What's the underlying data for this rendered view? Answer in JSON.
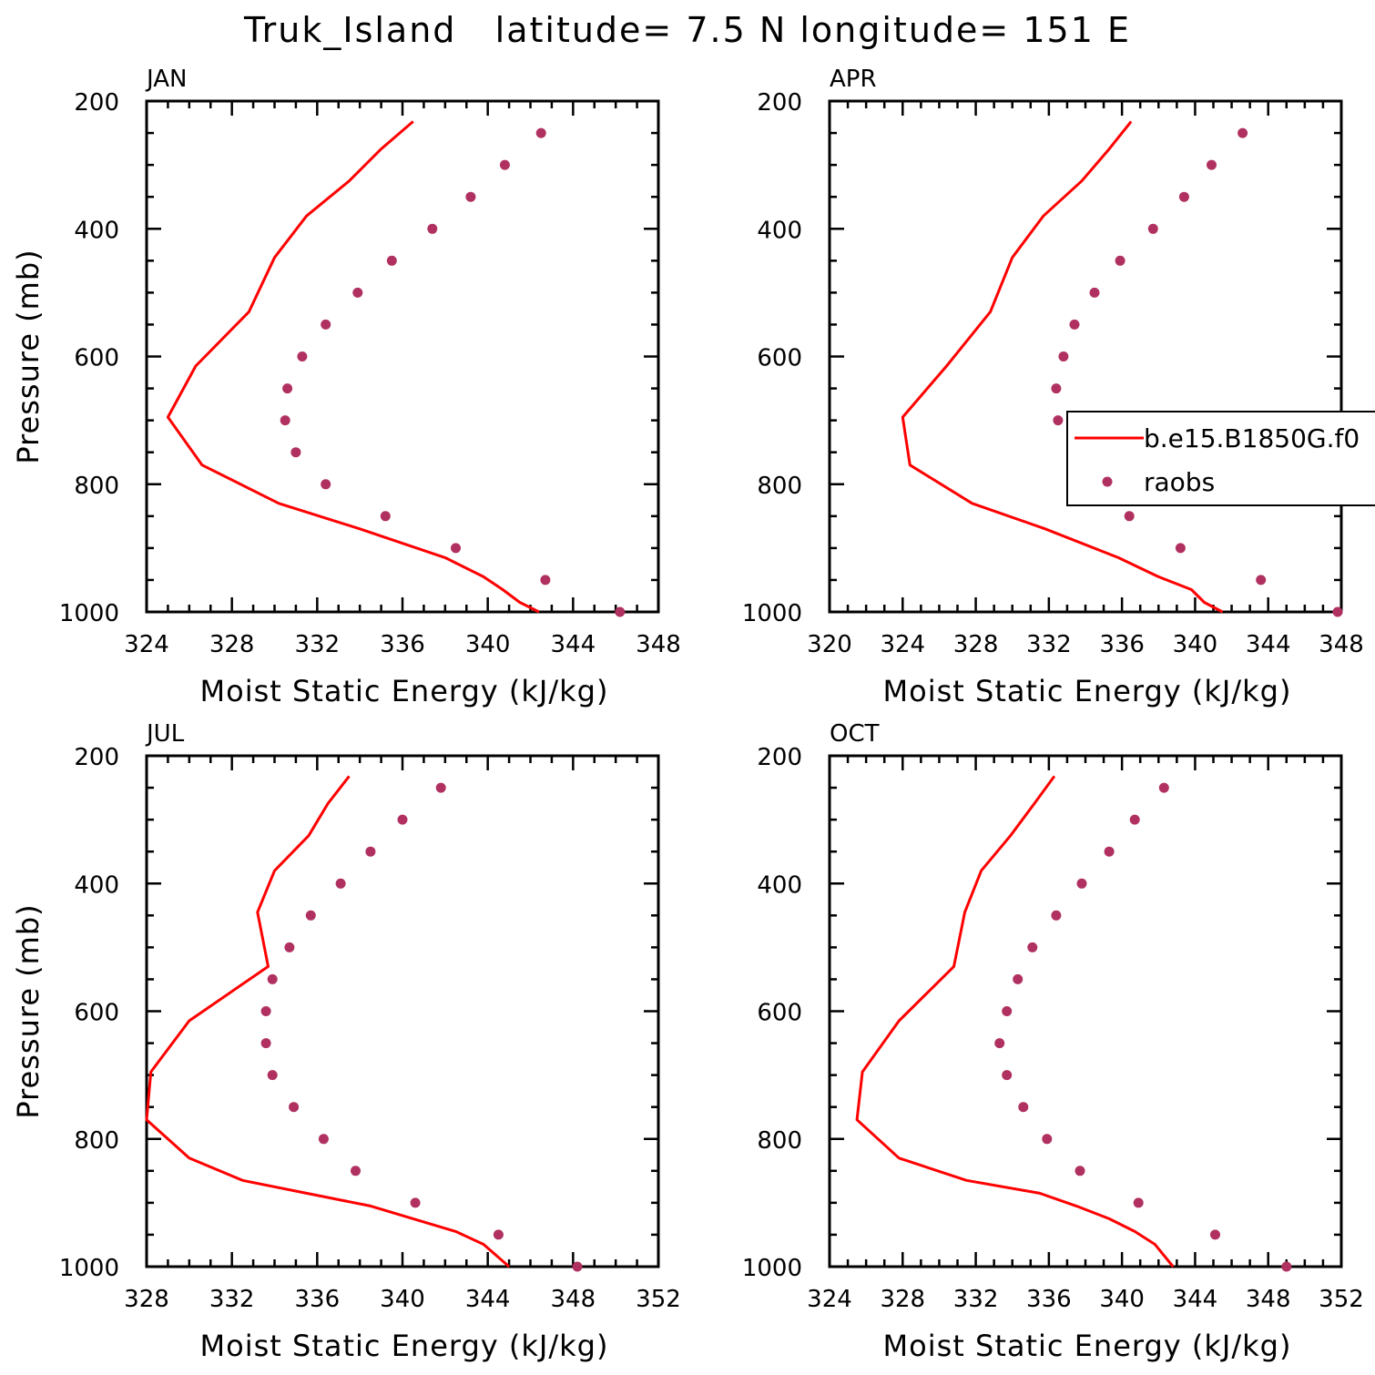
{
  "figure": {
    "title": "Truk_Island   latitude= 7.5 N longitude= 151 E"
  },
  "chart_data": [
    {
      "type": "line",
      "panel": "JAN",
      "xlabel": "Moist Static Energy (kJ/kg)",
      "ylabel": "Pressure (mb)",
      "xlim": [
        324,
        348
      ],
      "xticks": [
        324,
        328,
        332,
        336,
        340,
        344,
        348
      ],
      "ylim": [
        200,
        1000
      ],
      "yticks": [
        200,
        400,
        600,
        800,
        1000
      ],
      "y_inverted": true,
      "legend": null,
      "series": [
        {
          "name": "b.e15.B1850G.f0",
          "kind": "line",
          "color": "#ff0000",
          "x": [
            336.5,
            335.0,
            333.5,
            331.5,
            330.0,
            328.8,
            326.3,
            325.0,
            326.6,
            330.2,
            334.0,
            338.0,
            339.8,
            340.7,
            341.5,
            342.4
          ],
          "y": [
            232,
            275,
            325,
            380,
            445,
            530,
            615,
            695,
            770,
            830,
            870,
            915,
            945,
            965,
            985,
            1000
          ]
        },
        {
          "name": "raobs",
          "kind": "scatter",
          "color": "#b03060",
          "x": [
            342.5,
            340.8,
            339.2,
            337.4,
            335.5,
            333.9,
            332.4,
            331.3,
            330.6,
            330.5,
            331.0,
            332.4,
            335.2,
            338.5,
            342.7,
            346.2
          ],
          "y": [
            250,
            300,
            350,
            400,
            450,
            500,
            550,
            600,
            650,
            700,
            750,
            800,
            850,
            900,
            950,
            1000
          ]
        }
      ]
    },
    {
      "type": "line",
      "panel": "APR",
      "xlabel": "Moist Static Energy (kJ/kg)",
      "ylabel": "",
      "xlim": [
        320,
        348
      ],
      "xticks": [
        320,
        324,
        328,
        332,
        336,
        340,
        344,
        348
      ],
      "ylim": [
        200,
        1000
      ],
      "yticks": [
        200,
        400,
        600,
        800,
        1000
      ],
      "y_inverted": true,
      "legend": {
        "position": "right",
        "entries": [
          "b.e15.B1850G.f0",
          "raobs"
        ]
      },
      "series": [
        {
          "name": "b.e15.B1850G.f0",
          "kind": "line",
          "color": "#ff0000",
          "x": [
            336.5,
            335.3,
            333.8,
            331.7,
            330.0,
            328.8,
            326.4,
            324.0,
            324.4,
            327.8,
            331.8,
            335.8,
            338.0,
            339.8,
            340.5,
            341.5
          ],
          "y": [
            232,
            275,
            325,
            380,
            445,
            530,
            615,
            695,
            770,
            830,
            870,
            915,
            945,
            965,
            985,
            1000
          ]
        },
        {
          "name": "raobs",
          "kind": "scatter",
          "color": "#b03060",
          "x": [
            342.6,
            340.9,
            339.4,
            337.7,
            335.9,
            334.5,
            333.4,
            332.8,
            332.4,
            332.5,
            333.4,
            334.6,
            336.4,
            339.2,
            343.6,
            347.8
          ],
          "y": [
            250,
            300,
            350,
            400,
            450,
            500,
            550,
            600,
            650,
            700,
            750,
            800,
            850,
            900,
            950,
            1000
          ]
        }
      ]
    },
    {
      "type": "line",
      "panel": "JUL",
      "xlabel": "Moist Static Energy (kJ/kg)",
      "ylabel": "Pressure (mb)",
      "xlim": [
        328,
        352
      ],
      "xticks": [
        328,
        332,
        336,
        340,
        344,
        348,
        352
      ],
      "ylim": [
        200,
        1000
      ],
      "yticks": [
        200,
        400,
        600,
        800,
        1000
      ],
      "y_inverted": true,
      "legend": null,
      "series": [
        {
          "name": "b.e15.B1850G.f0",
          "kind": "line",
          "color": "#ff0000",
          "x": [
            337.5,
            336.5,
            335.6,
            334.0,
            333.2,
            333.7,
            330.0,
            328.2,
            328.0,
            330.0,
            332.5,
            335.5,
            338.5,
            340.5,
            342.5,
            343.8,
            345.0
          ],
          "y": [
            232,
            275,
            325,
            380,
            445,
            530,
            615,
            695,
            770,
            830,
            865,
            885,
            905,
            925,
            945,
            965,
            1000
          ]
        },
        {
          "name": "raobs",
          "kind": "scatter",
          "color": "#b03060",
          "x": [
            341.8,
            340.0,
            338.5,
            337.1,
            335.7,
            334.7,
            333.9,
            333.6,
            333.6,
            333.9,
            334.9,
            336.3,
            337.8,
            340.6,
            344.5,
            348.2
          ],
          "y": [
            250,
            300,
            350,
            400,
            450,
            500,
            550,
            600,
            650,
            700,
            750,
            800,
            850,
            900,
            950,
            1000
          ]
        }
      ]
    },
    {
      "type": "line",
      "panel": "OCT",
      "xlabel": "Moist Static Energy (kJ/kg)",
      "ylabel": "",
      "xlim": [
        324,
        352
      ],
      "xticks": [
        324,
        328,
        332,
        336,
        340,
        344,
        348,
        352
      ],
      "ylim": [
        200,
        1000
      ],
      "yticks": [
        200,
        400,
        600,
        800,
        1000
      ],
      "y_inverted": true,
      "legend": null,
      "series": [
        {
          "name": "b.e15.B1850G.f0",
          "kind": "line",
          "color": "#ff0000",
          "x": [
            336.3,
            335.2,
            333.9,
            332.3,
            331.4,
            330.8,
            327.8,
            325.8,
            325.5,
            327.8,
            331.5,
            335.5,
            337.5,
            339.3,
            340.7,
            341.8,
            342.8
          ],
          "y": [
            232,
            275,
            325,
            380,
            445,
            530,
            615,
            695,
            770,
            830,
            865,
            885,
            905,
            925,
            945,
            965,
            1000
          ]
        },
        {
          "name": "raobs",
          "kind": "scatter",
          "color": "#b03060",
          "x": [
            342.3,
            340.7,
            339.3,
            337.8,
            336.4,
            335.1,
            334.3,
            333.7,
            333.3,
            333.7,
            334.6,
            335.9,
            337.7,
            340.9,
            345.1,
            349.0
          ],
          "y": [
            250,
            300,
            350,
            400,
            450,
            500,
            550,
            600,
            650,
            700,
            750,
            800,
            850,
            900,
            950,
            1000
          ]
        }
      ]
    }
  ]
}
